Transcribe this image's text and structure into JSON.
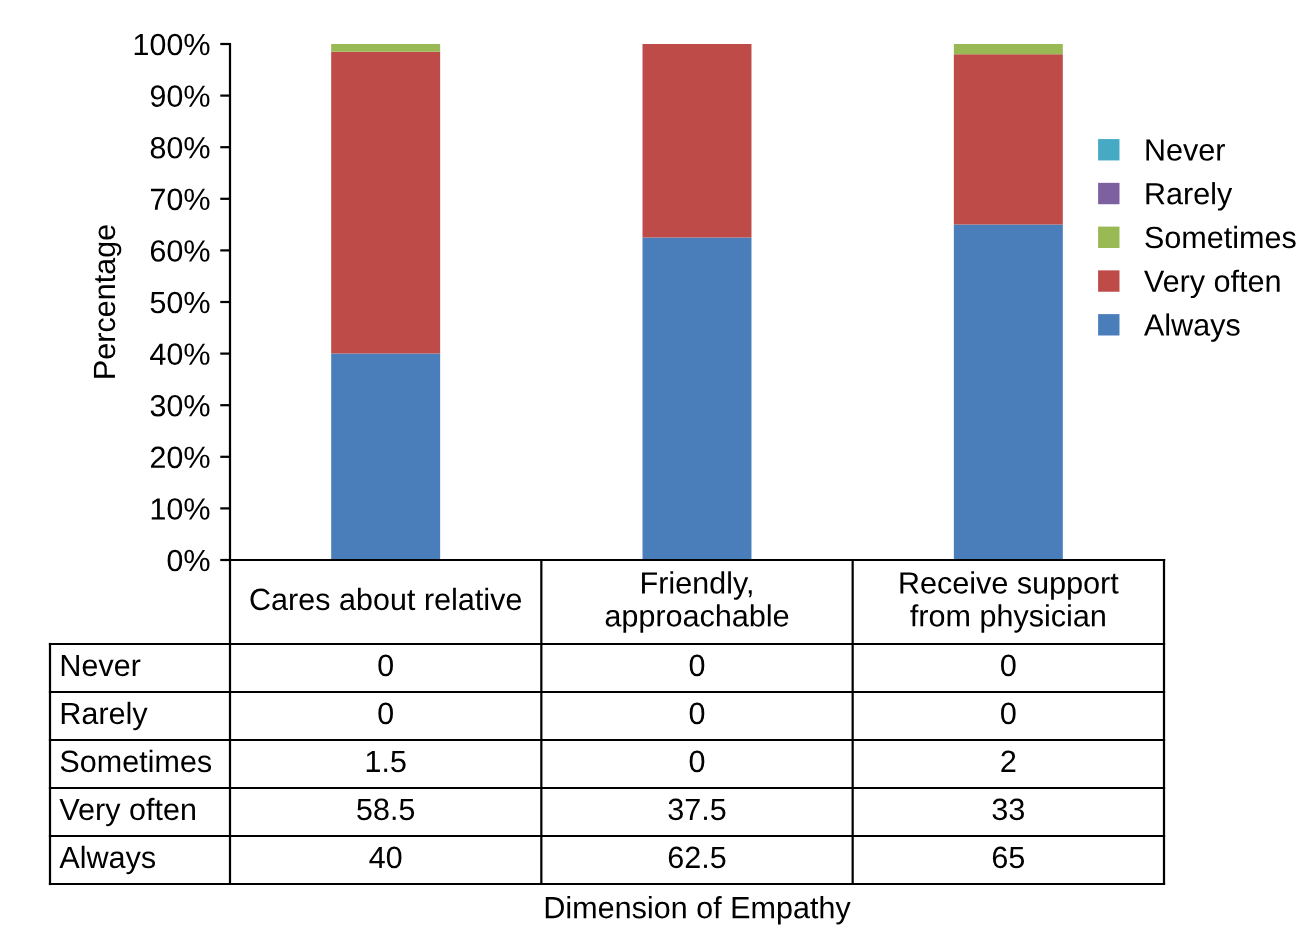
{
  "chart_data": {
    "type": "bar",
    "stacked": true,
    "categories": [
      "Cares about relative",
      "Friendly,\napproachable",
      "Receive support\nfrom physician"
    ],
    "series": [
      {
        "name": "Always",
        "color": "#4a7ebb",
        "values": [
          40,
          62.5,
          65
        ],
        "value_labels": [
          "40",
          "62.5",
          "65"
        ]
      },
      {
        "name": "Very often",
        "color": "#be4b48",
        "values": [
          58.5,
          37.5,
          33
        ],
        "value_labels": [
          "58.5",
          "37.5",
          "33"
        ]
      },
      {
        "name": "Sometimes",
        "color": "#98b954",
        "values": [
          1.5,
          0,
          2
        ],
        "value_labels": [
          "1.5",
          "0",
          "2"
        ]
      },
      {
        "name": "Rarely",
        "color": "#7d60a0",
        "values": [
          0,
          0,
          0
        ],
        "value_labels": [
          "0",
          "0",
          "0"
        ]
      },
      {
        "name": "Never",
        "color": "#46aac5",
        "values": [
          0,
          0,
          0
        ],
        "value_labels": [
          "0",
          "0",
          "0"
        ]
      }
    ],
    "ylabel": "Percentage",
    "annotations": [
      "Dimension of Empathy"
    ],
    "ylim": [
      0,
      100
    ],
    "yticks": [
      {
        "value": 0,
        "label": "0%"
      },
      {
        "value": 10,
        "label": "10%"
      },
      {
        "value": 20,
        "label": "20%"
      },
      {
        "value": 30,
        "label": "30%"
      },
      {
        "value": 40,
        "label": "40%"
      },
      {
        "value": 50,
        "label": "50%"
      },
      {
        "value": 60,
        "label": "60%"
      },
      {
        "value": 70,
        "label": "70%"
      },
      {
        "value": 80,
        "label": "80%"
      },
      {
        "value": 90,
        "label": "90%"
      },
      {
        "value": 100,
        "label": "100%"
      }
    ],
    "legend": "right",
    "grid": false
  }
}
